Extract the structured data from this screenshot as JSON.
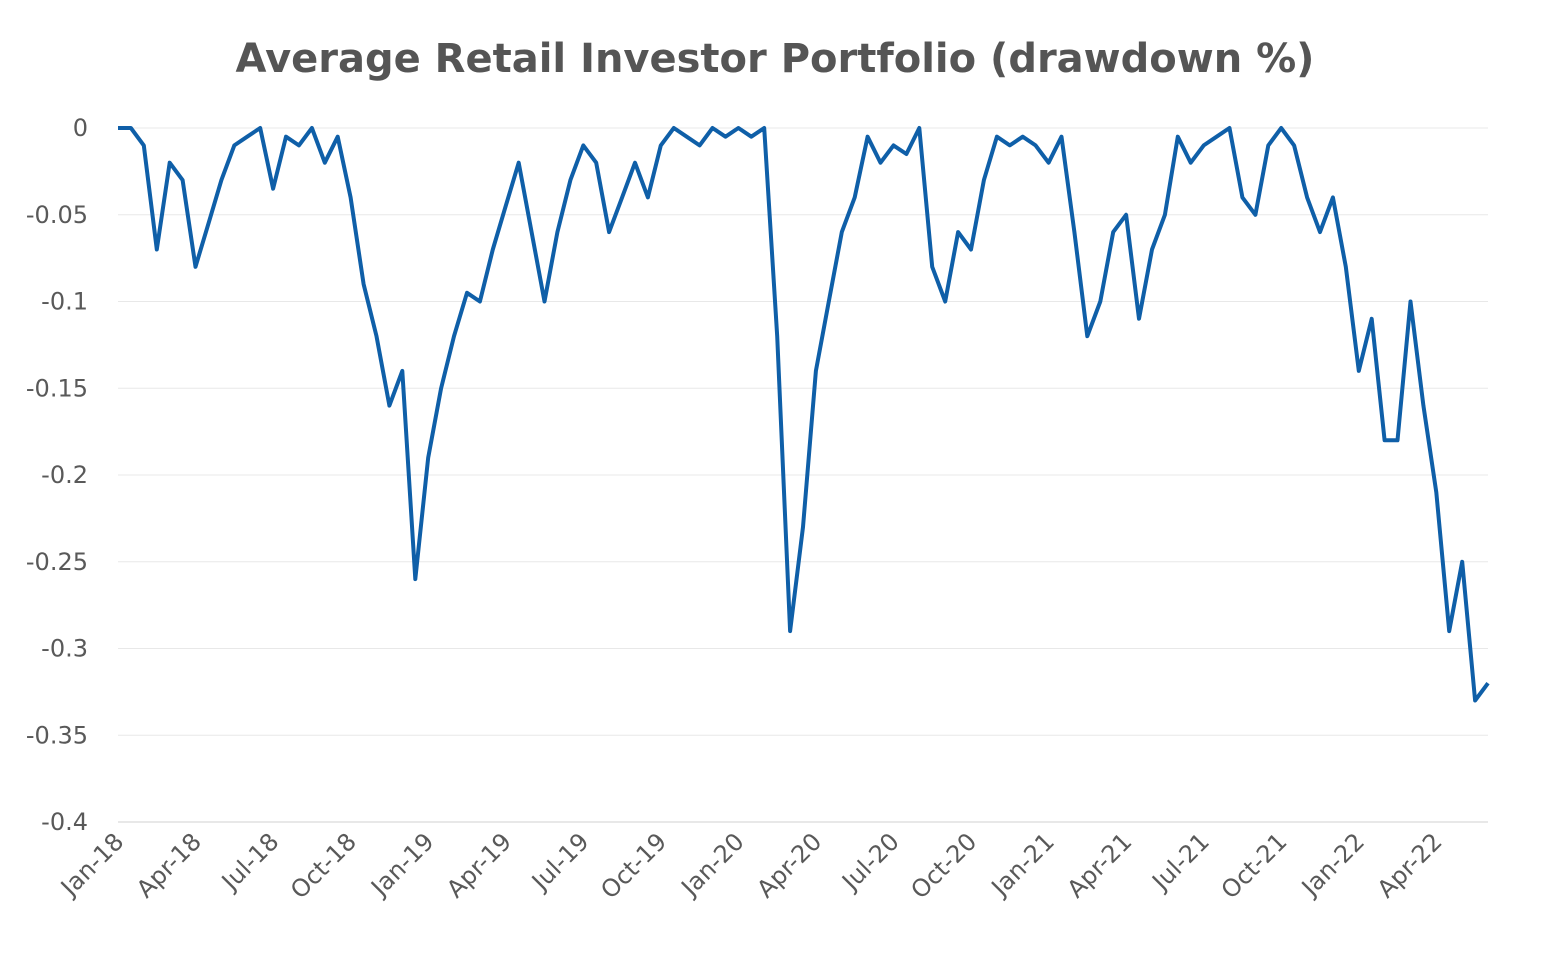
{
  "chart_data": {
    "type": "line",
    "title": "Average Retail Investor Portfolio (drawdown %)",
    "categories": [
      "Jan-18",
      null,
      null,
      null,
      null,
      null,
      "Apr-18",
      null,
      null,
      null,
      null,
      null,
      "Jul-18",
      null,
      null,
      null,
      null,
      null,
      "Oct-18",
      null,
      null,
      null,
      null,
      null,
      "Jan-19",
      null,
      null,
      null,
      null,
      null,
      "Apr-19",
      null,
      null,
      null,
      null,
      null,
      "Jul-19",
      null,
      null,
      null,
      null,
      null,
      "Oct-19",
      null,
      null,
      null,
      null,
      null,
      "Jan-20",
      null,
      null,
      null,
      null,
      null,
      "Apr-20",
      null,
      null,
      null,
      null,
      null,
      "Jul-20",
      null,
      null,
      null,
      null,
      null,
      "Oct-20",
      null,
      null,
      null,
      null,
      null,
      "Jan-21",
      null,
      null,
      null,
      null,
      null,
      "Apr-21",
      null,
      null,
      null,
      null,
      null,
      "Jul-21",
      null,
      null,
      null,
      null,
      null,
      "Oct-21",
      null,
      null,
      null,
      null,
      null,
      "Jan-22",
      null,
      null,
      null,
      null,
      null,
      "Apr-22",
      null,
      null,
      null,
      null
    ],
    "series": [
      {
        "color": "#0f5fa8",
        "values": [
          0,
          0,
          -0.01,
          -0.07,
          -0.02,
          -0.03,
          -0.08,
          -0.055,
          -0.03,
          -0.01,
          -0.005,
          0,
          -0.035,
          -0.005,
          -0.01,
          0,
          -0.02,
          -0.005,
          -0.04,
          -0.09,
          -0.12,
          -0.16,
          -0.14,
          -0.26,
          -0.19,
          -0.15,
          -0.12,
          -0.095,
          -0.1,
          -0.07,
          -0.045,
          -0.02,
          -0.06,
          -0.1,
          -0.06,
          -0.03,
          -0.01,
          -0.02,
          -0.06,
          -0.04,
          -0.02,
          -0.04,
          -0.01,
          0,
          -0.005,
          -0.01,
          0,
          -0.005,
          0,
          -0.005,
          0,
          -0.12,
          -0.29,
          -0.23,
          -0.14,
          -0.1,
          -0.06,
          -0.04,
          -0.005,
          -0.02,
          -0.01,
          -0.015,
          0,
          -0.08,
          -0.1,
          -0.06,
          -0.07,
          -0.03,
          -0.005,
          -0.01,
          -0.005,
          -0.01,
          -0.02,
          -0.005,
          -0.06,
          -0.12,
          -0.1,
          -0.06,
          -0.05,
          -0.11,
          -0.07,
          -0.05,
          -0.005,
          -0.02,
          -0.01,
          -0.005,
          0,
          -0.04,
          -0.05,
          -0.01,
          0,
          -0.01,
          -0.04,
          -0.06,
          -0.04,
          -0.08,
          -0.14,
          -0.11,
          -0.18,
          -0.18,
          -0.1,
          -0.16,
          -0.21,
          -0.29,
          -0.25,
          -0.33,
          -0.32
        ]
      }
    ],
    "ylim": [
      -0.4,
      0
    ],
    "yticks": [
      0,
      -0.05,
      -0.1,
      -0.15,
      -0.2,
      -0.25,
      -0.3,
      -0.35,
      -0.4
    ],
    "grid": true
  }
}
